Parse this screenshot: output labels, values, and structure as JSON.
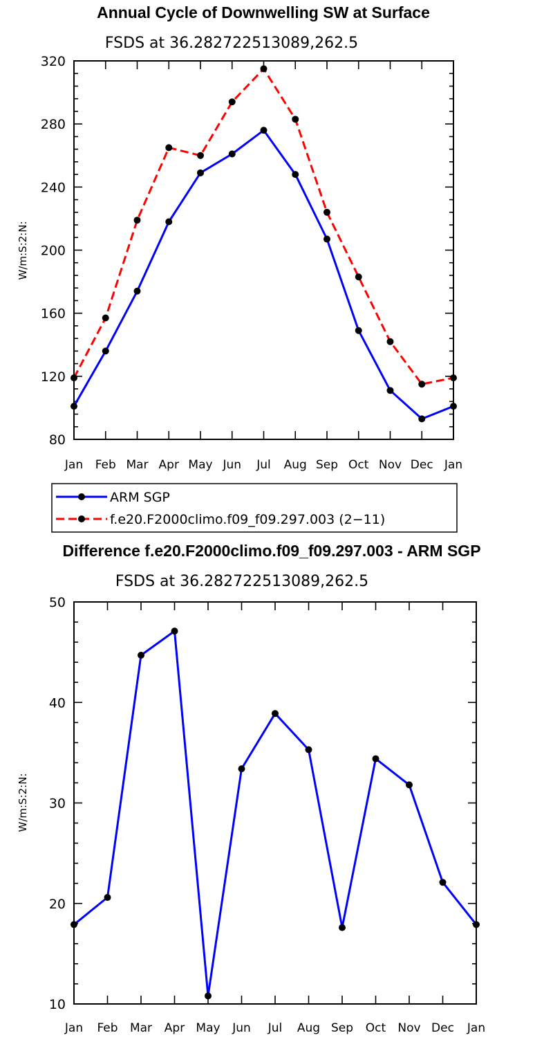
{
  "chart_data": [
    {
      "type": "line",
      "title": "Annual Cycle of Downwelling SW at Surface",
      "subtitle": "FSDS at 36.282722513089,262.5",
      "ylabel": "W/m:S:2:N:",
      "xlabel": "",
      "categories": [
        "Jan",
        "Feb",
        "Mar",
        "Apr",
        "May",
        "Jun",
        "Jul",
        "Aug",
        "Sep",
        "Oct",
        "Nov",
        "Dec",
        "Jan"
      ],
      "ylim": [
        80,
        320
      ],
      "yticks": [
        80,
        120,
        160,
        200,
        240,
        280,
        320
      ],
      "series": [
        {
          "name": "ARM SGP",
          "color": "#0000ff",
          "dash": "solid",
          "values": [
            101,
            136,
            174,
            218,
            249,
            261,
            276,
            248,
            207,
            149,
            111,
            93,
            101
          ]
        },
        {
          "name": "f.e20.F2000climo.f09_f09.297.003 (2−11)",
          "color": "#ff0000",
          "dash": "dashed",
          "values": [
            119,
            157,
            219,
            265,
            260,
            294,
            315,
            283,
            224,
            183,
            142,
            115,
            119
          ]
        }
      ],
      "legend": "bottom-left"
    },
    {
      "type": "line",
      "title": "Difference f.e20.F2000climo.f09_f09.297.003 - ARM SGP",
      "subtitle": "FSDS at 36.282722513089,262.5",
      "ylabel": "W/m:S:2:N:",
      "xlabel": "",
      "categories": [
        "Jan",
        "Feb",
        "Mar",
        "Apr",
        "May",
        "Jun",
        "Jul",
        "Aug",
        "Sep",
        "Oct",
        "Nov",
        "Dec",
        "Jan"
      ],
      "ylim": [
        10,
        50
      ],
      "yticks": [
        10,
        20,
        30,
        40,
        50
      ],
      "series": [
        {
          "name": "Difference",
          "color": "#0000ff",
          "dash": "solid",
          "values": [
            17.9,
            20.6,
            44.7,
            47.1,
            10.8,
            33.4,
            38.9,
            35.3,
            17.6,
            34.4,
            31.8,
            22.1,
            17.9
          ]
        }
      ]
    }
  ]
}
